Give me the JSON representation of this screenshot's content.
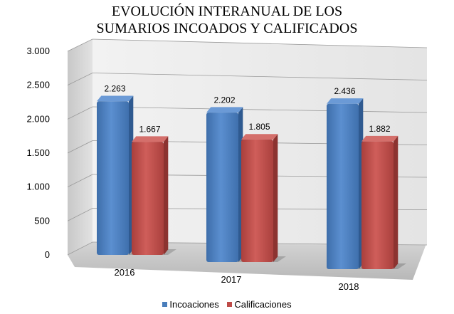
{
  "chart_data": {
    "type": "bar",
    "title_lines": [
      "EVOLUCIÓN INTERANUAL DE LOS",
      "SUMARIOS INCOADOS Y CALIFICADOS"
    ],
    "categories": [
      "2016",
      "2017",
      "2018"
    ],
    "series": [
      {
        "name": "Incoaciones",
        "values": [
          2263,
          2202,
          2436
        ],
        "labels": [
          "2.263",
          "2.202",
          "2.436"
        ],
        "color": "#4a7ebb"
      },
      {
        "name": "Calificaciones",
        "values": [
          1667,
          1805,
          1882
        ],
        "labels": [
          "1.667",
          "1.805",
          "1.882"
        ],
        "color": "#be4b48"
      }
    ],
    "ylim": [
      0,
      3000
    ],
    "yticks": [
      0,
      500,
      1000,
      1500,
      2000,
      2500,
      3000
    ],
    "ytick_labels": [
      "0",
      "500",
      "1.000",
      "1.500",
      "2.000",
      "2.500",
      "3.000"
    ],
    "grid": true,
    "three_d": true,
    "legend_position": "bottom"
  }
}
